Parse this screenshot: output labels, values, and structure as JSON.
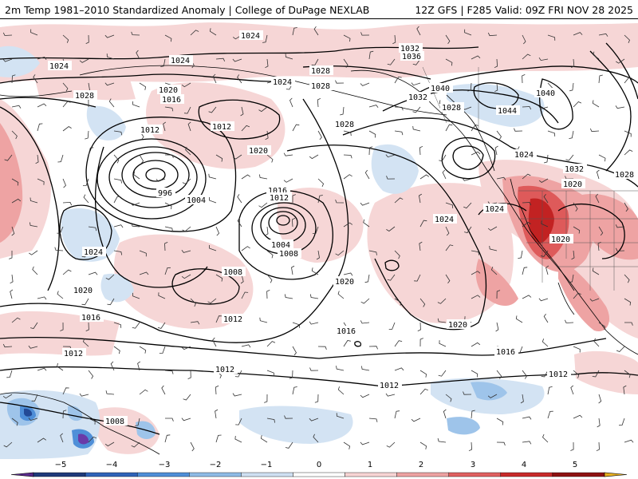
{
  "header": {
    "title_left": "2m Temp 1981–2010 Standardized Anomaly | College of DuPage NEXLAB",
    "title_right": "12Z GFS | F285 Valid: 09Z FRI NOV 28 2025"
  },
  "isobar_labels": [
    "1024",
    "1024",
    "1024",
    "1024",
    "1028",
    "1028",
    "1032",
    "1036",
    "1040",
    "1040",
    "1044",
    "1032",
    "1028",
    "1028",
    "1020",
    "1016",
    "1012",
    "1012",
    "1028",
    "1020",
    "996",
    "1004",
    "1016",
    "1012",
    "1004",
    "1008",
    "1024",
    "1024",
    "1032",
    "1028",
    "1020",
    "1024",
    "1024",
    "1020",
    "1008",
    "1020",
    "1020",
    "1016",
    "1012",
    "1016",
    "1012",
    "1020",
    "1016",
    "1012",
    "1012",
    "1012",
    "1008"
  ],
  "colorbar": {
    "ticks": [
      "−5",
      "−4",
      "−3",
      "−2",
      "−1",
      "0",
      "1",
      "2",
      "3",
      "4",
      "5"
    ],
    "colors": [
      "#5a2a8c",
      "#1f3a7a",
      "#2f63b8",
      "#4f8fd8",
      "#8fbbe6",
      "#cfe0f2",
      "#ffffff",
      "#f7d4d4",
      "#eda2a2",
      "#e06060",
      "#c82a2a",
      "#8e1212",
      "#e8b020"
    ]
  },
  "anomaly_colors": {
    "light_red": "#f6d6d6",
    "mid_red": "#eea3a3",
    "red": "#de5a5a",
    "dark_red": "#c22222",
    "light_blue": "#d3e3f3",
    "mid_blue": "#9ec4ea",
    "blue": "#4f8fd8",
    "dark_blue": "#234a96",
    "purple": "#6a3aa8"
  }
}
